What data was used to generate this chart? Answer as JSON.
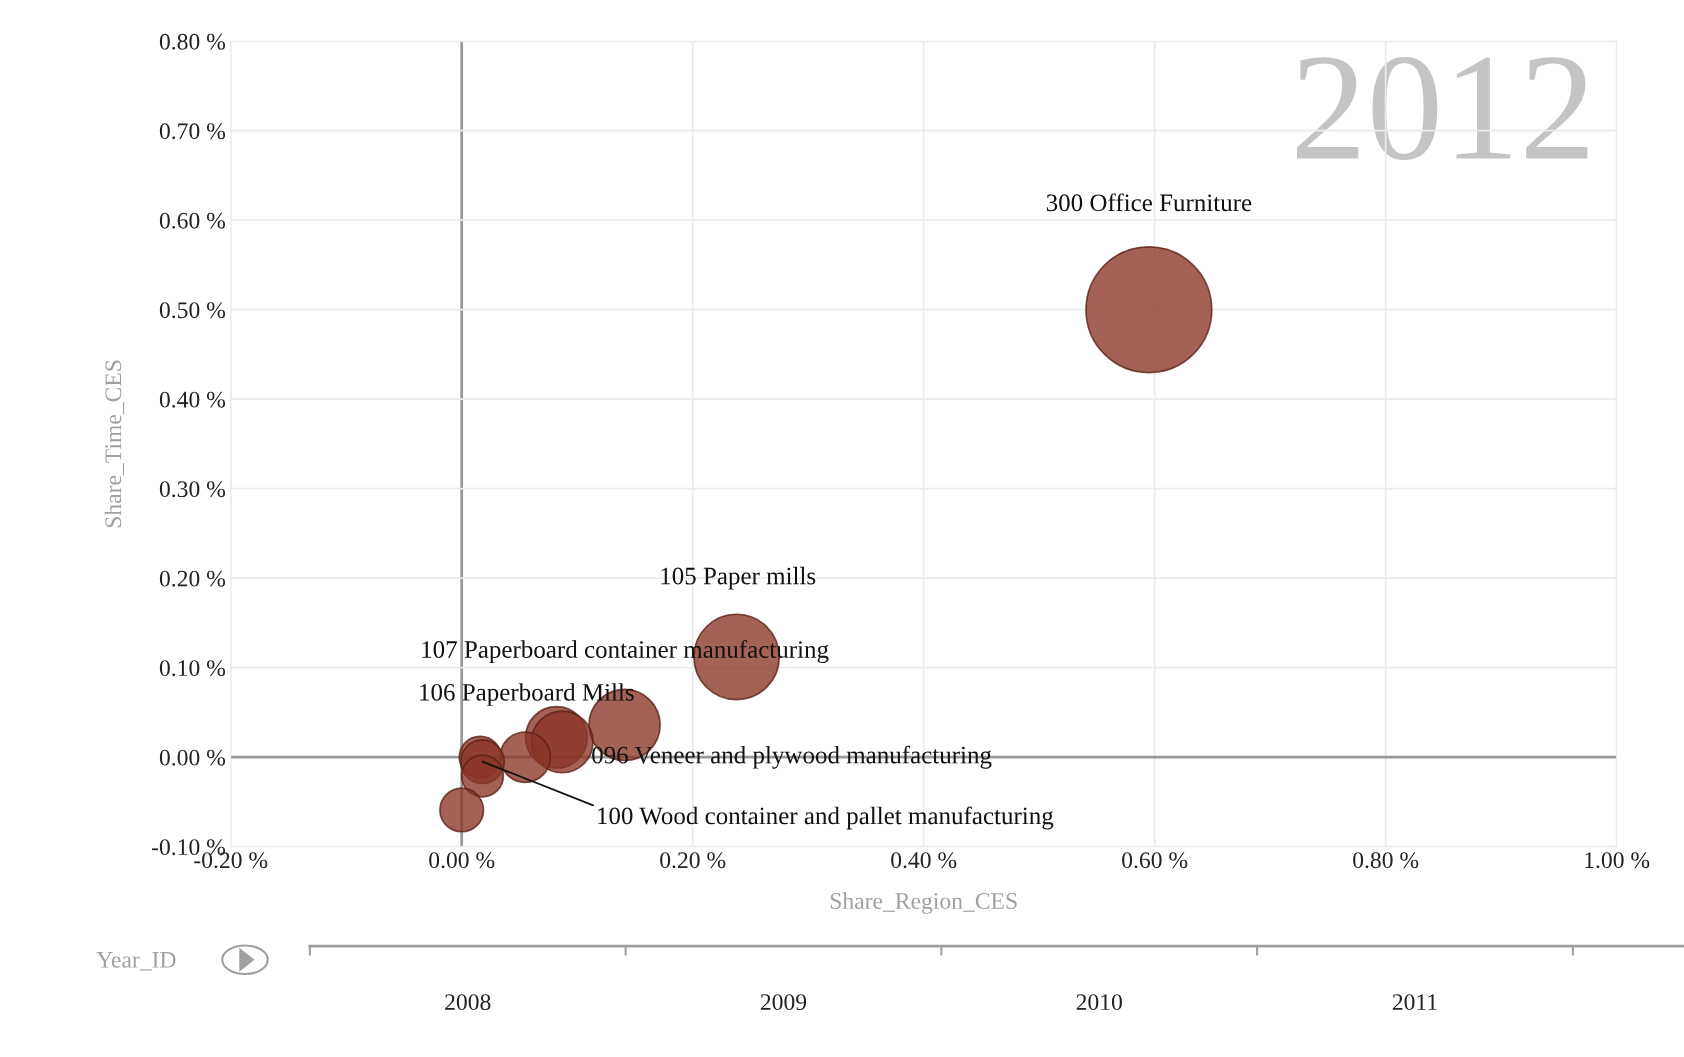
{
  "chart_data": {
    "type": "bubble",
    "xlabel": "Share_Region_CES",
    "ylabel": "Share_Time_CES",
    "x": [
      0.595,
      0.238,
      0.141,
      0.082,
      0.087,
      0.055,
      0.016,
      0.018,
      0.018,
      0.0
    ],
    "series": [
      {
        "color": "#8b3525",
        "values": [
          0.5,
          0.112,
          0.036,
          0.022,
          0.017,
          0.0,
          0.0,
          -0.005,
          -0.021,
          -0.059
        ],
        "sizes": [
          1,
          0.46,
          0.32,
          0.24,
          0.24,
          0.16,
          0.11,
          0.12,
          0.11,
          0.12
        ]
      }
    ],
    "xlim": [
      -0.2,
      1.0
    ],
    "ylim": [
      -0.1,
      0.8
    ],
    "xticks": [
      {
        "value": -0.2,
        "label": "-0.20 %"
      },
      {
        "value": 0.0,
        "label": "0.00 %"
      },
      {
        "value": 0.2,
        "label": "0.20 %"
      },
      {
        "value": 0.4,
        "label": "0.40 %"
      },
      {
        "value": 0.6,
        "label": "0.60 %"
      },
      {
        "value": 0.8,
        "label": "0.80 %"
      },
      {
        "value": 1.0,
        "label": "1.00 %"
      }
    ],
    "yticks": [
      {
        "value": -0.1,
        "label": "-0.10 %"
      },
      {
        "value": 0.0,
        "label": "0.00 %"
      },
      {
        "value": 0.1,
        "label": "0.10 %"
      },
      {
        "value": 0.2,
        "label": "0.20 %"
      },
      {
        "value": 0.3,
        "label": "0.30 %"
      },
      {
        "value": 0.4,
        "label": "0.40 %"
      },
      {
        "value": 0.5,
        "label": "0.50 %"
      },
      {
        "value": 0.6,
        "label": "0.60 %"
      },
      {
        "value": 0.7,
        "label": "0.70 %"
      },
      {
        "value": 0.8,
        "label": "0.80 %"
      }
    ],
    "grid": true,
    "annotations": [
      "300 Office Furniture",
      "105 Paper mills",
      "107 Paperboard container manufacturing",
      "106 Paperboard Mills",
      "096 Veneer and plywood manufacturing",
      {
        "text": "100 Wood container and pallet manufacturing",
        "x": 0.018,
        "y": -0.005
      },
      "2012",
      "Year_ID",
      "2008",
      "2009",
      "2010",
      "2011"
    ]
  }
}
